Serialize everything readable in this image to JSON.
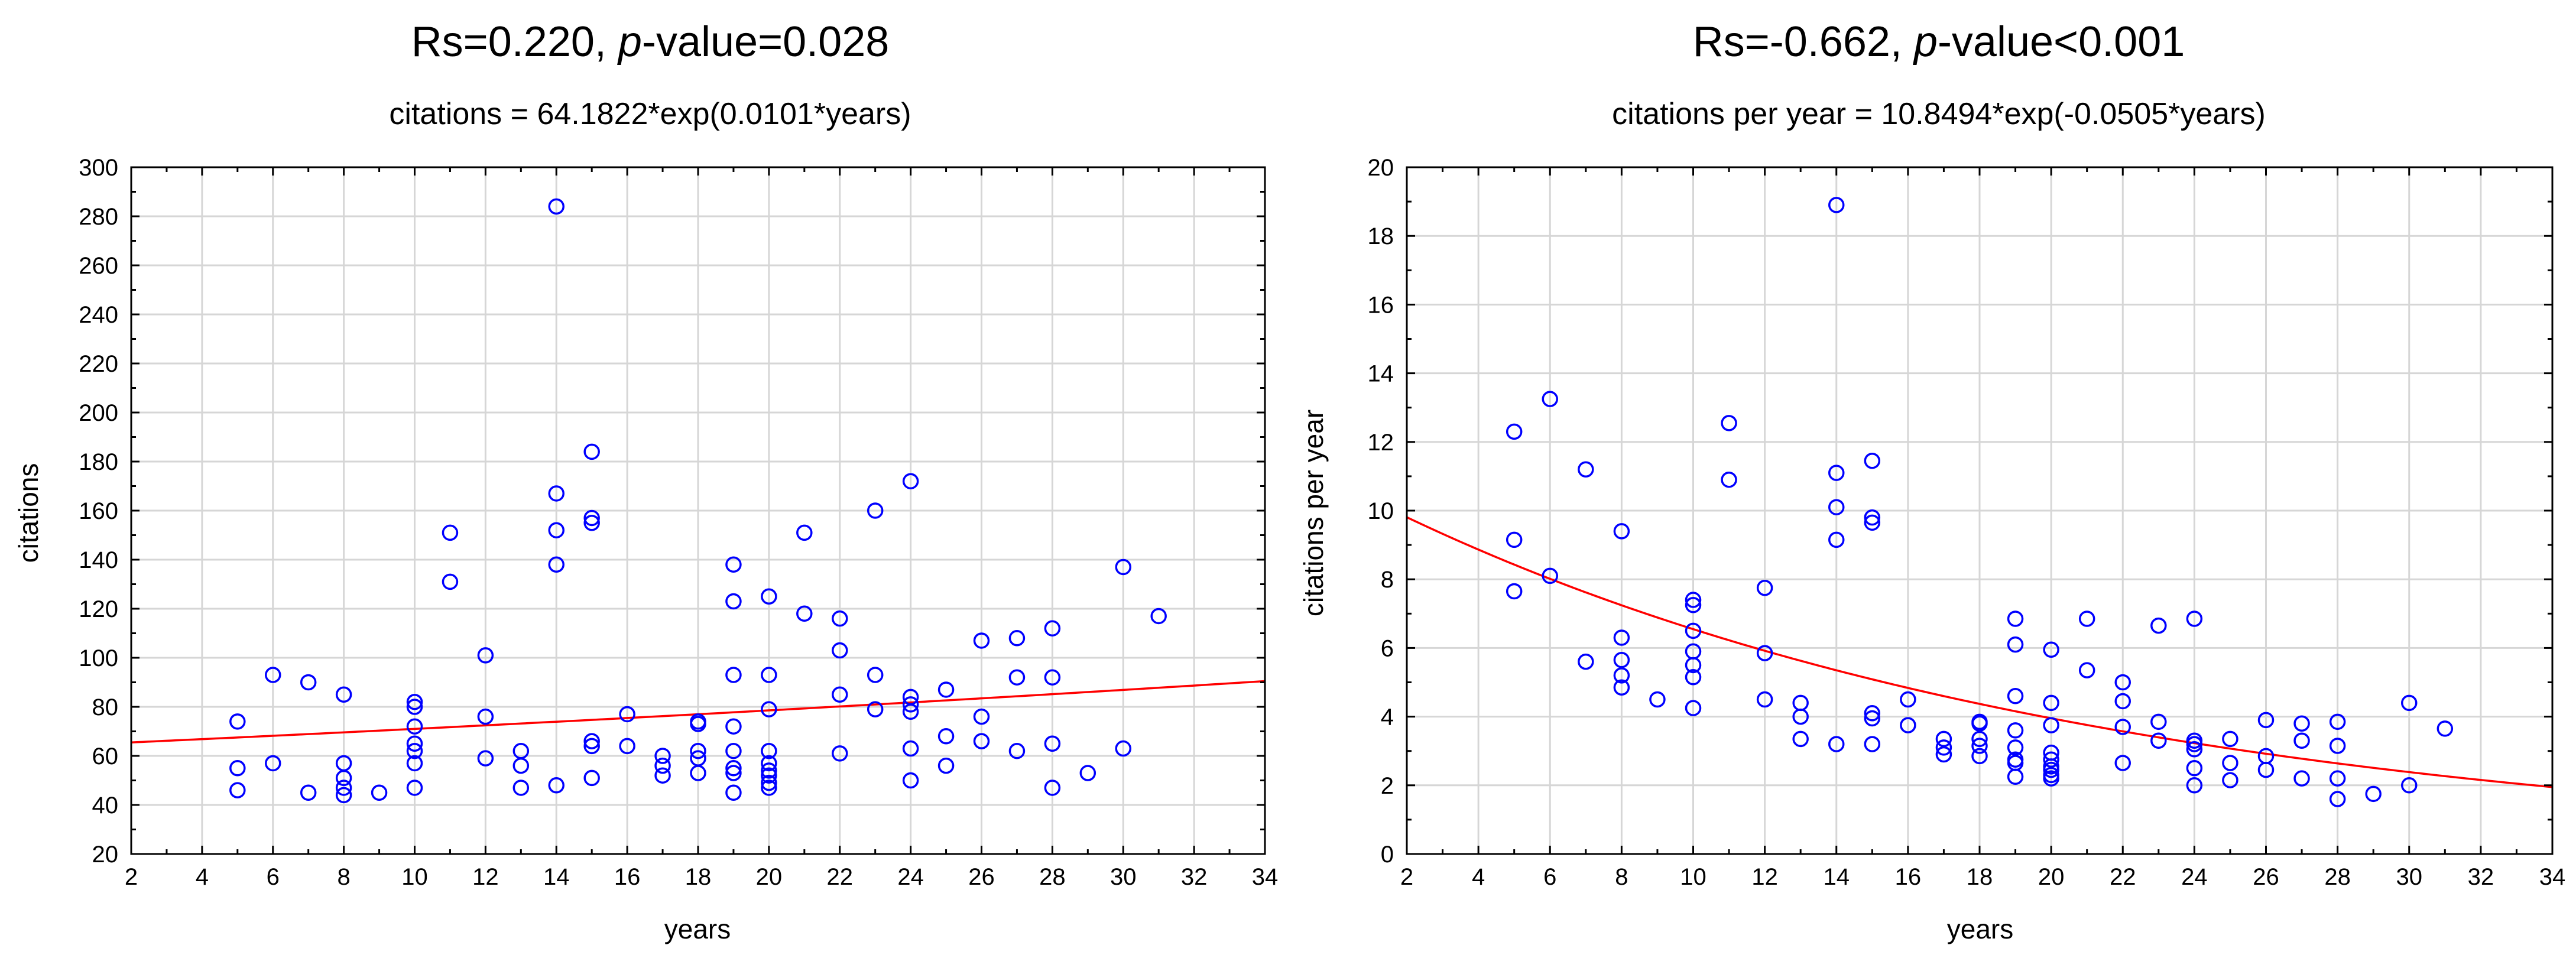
{
  "chart_data": [
    {
      "type": "scatter",
      "title_prefix": "Rs=0.220, ",
      "title_p": "p",
      "title_suffix": "-value=0.028",
      "subtitle": "citations = 64.1822*exp(0.0101*years)",
      "xlabel": "years",
      "ylabel": "citations",
      "xlim": [
        2,
        34
      ],
      "ylim": [
        20,
        300
      ],
      "xticks": [
        2,
        4,
        6,
        8,
        10,
        12,
        14,
        16,
        18,
        20,
        22,
        24,
        26,
        28,
        30,
        32,
        34
      ],
      "yticks": [
        20,
        40,
        60,
        80,
        100,
        120,
        140,
        160,
        180,
        200,
        220,
        240,
        260,
        280,
        300
      ],
      "grid": true,
      "fit": {
        "a": 64.1822,
        "b": 0.0101,
        "color": "#ff0000"
      },
      "marker_color": "#0000ff",
      "points": [
        [
          5,
          74
        ],
        [
          5,
          55
        ],
        [
          5,
          46
        ],
        [
          6,
          93
        ],
        [
          6,
          57
        ],
        [
          7,
          90
        ],
        [
          7,
          45
        ],
        [
          8,
          85
        ],
        [
          8,
          57
        ],
        [
          8,
          51
        ],
        [
          8,
          47
        ],
        [
          8,
          44
        ],
        [
          9,
          45
        ],
        [
          10,
          82
        ],
        [
          10,
          80
        ],
        [
          10,
          72
        ],
        [
          10,
          65
        ],
        [
          10,
          62
        ],
        [
          10,
          57
        ],
        [
          10,
          47
        ],
        [
          11,
          151
        ],
        [
          11,
          131
        ],
        [
          12,
          101
        ],
        [
          12,
          76
        ],
        [
          12,
          59
        ],
        [
          13,
          62
        ],
        [
          13,
          56
        ],
        [
          13,
          47
        ],
        [
          14,
          284
        ],
        [
          14,
          167
        ],
        [
          14,
          152
        ],
        [
          14,
          138
        ],
        [
          14,
          48
        ],
        [
          15,
          184
        ],
        [
          15,
          157
        ],
        [
          15,
          155
        ],
        [
          15,
          66
        ],
        [
          15,
          64
        ],
        [
          15,
          51
        ],
        [
          16,
          77
        ],
        [
          16,
          64
        ],
        [
          17,
          60
        ],
        [
          17,
          56
        ],
        [
          17,
          52
        ],
        [
          18,
          74
        ],
        [
          18,
          73
        ],
        [
          18,
          62
        ],
        [
          18,
          59
        ],
        [
          18,
          53
        ],
        [
          19,
          138
        ],
        [
          19,
          123
        ],
        [
          19,
          93
        ],
        [
          19,
          72
        ],
        [
          19,
          62
        ],
        [
          19,
          55
        ],
        [
          19,
          53
        ],
        [
          19,
          45
        ],
        [
          20,
          125
        ],
        [
          20,
          93
        ],
        [
          20,
          79
        ],
        [
          20,
          62
        ],
        [
          20,
          57
        ],
        [
          20,
          54
        ],
        [
          20,
          52
        ],
        [
          20,
          49
        ],
        [
          20,
          47
        ],
        [
          21,
          151
        ],
        [
          21,
          118
        ],
        [
          22,
          116
        ],
        [
          22,
          103
        ],
        [
          22,
          85
        ],
        [
          22,
          61
        ],
        [
          23,
          160
        ],
        [
          23,
          93
        ],
        [
          23,
          79
        ],
        [
          24,
          172
        ],
        [
          24,
          84
        ],
        [
          24,
          81
        ],
        [
          24,
          78
        ],
        [
          24,
          63
        ],
        [
          24,
          50
        ],
        [
          25,
          87
        ],
        [
          25,
          68
        ],
        [
          25,
          56
        ],
        [
          26,
          107
        ],
        [
          26,
          76
        ],
        [
          26,
          66
        ],
        [
          27,
          108
        ],
        [
          27,
          92
        ],
        [
          27,
          62
        ],
        [
          28,
          112
        ],
        [
          28,
          92
        ],
        [
          28,
          65
        ],
        [
          28,
          47
        ],
        [
          29,
          53
        ],
        [
          30,
          137
        ],
        [
          30,
          63
        ],
        [
          31,
          117
        ]
      ]
    },
    {
      "type": "scatter",
      "title_prefix": "Rs=-0.662, ",
      "title_p": "p",
      "title_suffix": "-value<0.001",
      "subtitle": "citations per year = 10.8494*exp(-0.0505*years)",
      "xlabel": "years",
      "ylabel": "citations per year",
      "xlim": [
        2,
        34
      ],
      "ylim": [
        0,
        20
      ],
      "xticks": [
        2,
        4,
        6,
        8,
        10,
        12,
        14,
        16,
        18,
        20,
        22,
        24,
        26,
        28,
        30,
        32,
        34
      ],
      "yticks": [
        0,
        2,
        4,
        6,
        8,
        10,
        12,
        14,
        16,
        18,
        20
      ],
      "grid": true,
      "fit": {
        "a": 10.8494,
        "b": -0.0505,
        "color": "#ff0000"
      },
      "marker_color": "#0000ff",
      "points": [
        [
          5,
          12.3
        ],
        [
          5,
          9.15
        ],
        [
          5,
          7.65
        ],
        [
          6,
          13.25
        ],
        [
          6,
          8.1
        ],
        [
          7,
          11.2
        ],
        [
          7,
          5.6
        ],
        [
          8,
          9.4
        ],
        [
          8,
          6.3
        ],
        [
          8,
          5.65
        ],
        [
          8,
          5.2
        ],
        [
          8,
          4.85
        ],
        [
          9,
          4.5
        ],
        [
          10,
          7.4
        ],
        [
          10,
          7.25
        ],
        [
          10,
          6.5
        ],
        [
          10,
          5.9
        ],
        [
          10,
          5.5
        ],
        [
          10,
          5.15
        ],
        [
          10,
          4.25
        ],
        [
          11,
          12.55
        ],
        [
          11,
          10.9
        ],
        [
          12,
          7.75
        ],
        [
          12,
          5.85
        ],
        [
          12,
          4.5
        ],
        [
          13,
          4.4
        ],
        [
          13,
          4.0
        ],
        [
          13,
          3.35
        ],
        [
          14,
          18.9
        ],
        [
          14,
          11.1
        ],
        [
          14,
          10.1
        ],
        [
          14,
          9.15
        ],
        [
          14,
          3.2
        ],
        [
          15,
          11.45
        ],
        [
          15,
          9.8
        ],
        [
          15,
          9.65
        ],
        [
          15,
          4.1
        ],
        [
          15,
          3.95
        ],
        [
          15,
          3.2
        ],
        [
          16,
          4.5
        ],
        [
          16,
          3.75
        ],
        [
          17,
          3.35
        ],
        [
          17,
          3.1
        ],
        [
          17,
          2.9
        ],
        [
          18,
          3.85
        ],
        [
          18,
          3.8
        ],
        [
          18,
          3.35
        ],
        [
          18,
          3.15
        ],
        [
          18,
          2.85
        ],
        [
          19,
          6.85
        ],
        [
          19,
          6.1
        ],
        [
          19,
          4.6
        ],
        [
          19,
          3.6
        ],
        [
          19,
          3.1
        ],
        [
          19,
          2.75
        ],
        [
          19,
          2.65
        ],
        [
          19,
          2.25
        ],
        [
          20,
          5.95
        ],
        [
          20,
          4.4
        ],
        [
          20,
          3.75
        ],
        [
          20,
          2.95
        ],
        [
          20,
          2.75
        ],
        [
          20,
          2.55
        ],
        [
          20,
          2.45
        ],
        [
          20,
          2.3
        ],
        [
          20,
          2.2
        ],
        [
          21,
          6.85
        ],
        [
          21,
          5.35
        ],
        [
          22,
          5.0
        ],
        [
          22,
          4.45
        ],
        [
          22,
          3.7
        ],
        [
          22,
          2.65
        ],
        [
          23,
          6.65
        ],
        [
          23,
          3.85
        ],
        [
          23,
          3.3
        ],
        [
          24,
          6.85
        ],
        [
          24,
          3.3
        ],
        [
          24,
          3.2
        ],
        [
          24,
          3.05
        ],
        [
          24,
          2.5
        ],
        [
          24,
          2.0
        ],
        [
          25,
          3.35
        ],
        [
          25,
          2.65
        ],
        [
          25,
          2.15
        ],
        [
          26,
          3.9
        ],
        [
          26,
          2.85
        ],
        [
          26,
          2.45
        ],
        [
          27,
          3.8
        ],
        [
          27,
          3.3
        ],
        [
          27,
          2.2
        ],
        [
          28,
          3.85
        ],
        [
          28,
          3.15
        ],
        [
          28,
          2.2
        ],
        [
          28,
          1.6
        ],
        [
          29,
          1.75
        ],
        [
          30,
          4.4
        ],
        [
          30,
          2.0
        ],
        [
          31,
          3.65
        ]
      ]
    }
  ]
}
